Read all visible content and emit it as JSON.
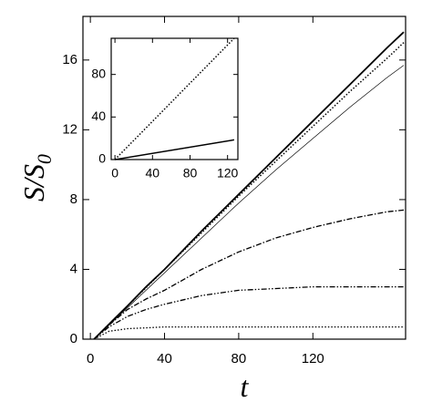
{
  "chart_data": [
    {
      "type": "line",
      "xlabel": "t",
      "ylabel": {
        "main": "S/S",
        "sub": "0"
      },
      "x": [
        2,
        10,
        20,
        30,
        40,
        60,
        80,
        100,
        120,
        140,
        160,
        169
      ],
      "xlim": [
        -4,
        170
      ],
      "ylim": [
        0,
        18.5
      ],
      "xticks": [
        0,
        40,
        80,
        120
      ],
      "yticks": [
        0,
        4,
        8,
        12,
        16
      ],
      "series": [
        {
          "color": "#000000",
          "style": "solid",
          "width": 1.8,
          "values": [
            0,
            0.85,
            1.9,
            3.0,
            4.0,
            6.2,
            8.3,
            10.4,
            12.5,
            14.6,
            16.7,
            17.6
          ]
        },
        {
          "color": "#000000",
          "style": "dotted",
          "width": 1.5,
          "values": [
            0,
            0.85,
            1.9,
            2.95,
            4.0,
            6.1,
            8.2,
            10.2,
            12.2,
            14.2,
            16.1,
            17.0
          ]
        },
        {
          "color": "#000000",
          "style": "solid",
          "width": 0.7,
          "values": [
            0,
            0.8,
            1.8,
            2.8,
            3.8,
            5.8,
            7.8,
            9.7,
            11.5,
            13.3,
            15.0,
            15.7
          ]
        },
        {
          "color": "#000000",
          "style": "dashdot",
          "width": 1.3,
          "values": [
            0,
            0.8,
            1.7,
            2.3,
            2.8,
            4.0,
            5.0,
            5.8,
            6.4,
            6.9,
            7.3,
            7.4
          ]
        },
        {
          "color": "#000000",
          "style": "dashdotdot",
          "width": 1.3,
          "values": [
            0,
            0.7,
            1.3,
            1.7,
            2.0,
            2.5,
            2.8,
            2.9,
            3.0,
            3.0,
            3.0,
            3.0
          ]
        },
        {
          "color": "#000000",
          "style": "dotted",
          "width": 1.3,
          "values": [
            0,
            0.45,
            0.6,
            0.65,
            0.7,
            0.7,
            0.7,
            0.7,
            0.7,
            0.7,
            0.7,
            0.7
          ]
        }
      ]
    },
    {
      "type": "line",
      "x": [
        0,
        127
      ],
      "xlim": [
        -4,
        131
      ],
      "ylim": [
        0,
        114
      ],
      "xticks": [
        0,
        40,
        80,
        120
      ],
      "yticks": [
        0,
        40,
        80
      ],
      "series": [
        {
          "color": "#000000",
          "style": "dotted",
          "width": 1.5,
          "values": [
            0,
            114
          ]
        },
        {
          "color": "#000000",
          "style": "solid",
          "width": 1.5,
          "values": [
            0,
            18.5
          ]
        }
      ]
    }
  ]
}
